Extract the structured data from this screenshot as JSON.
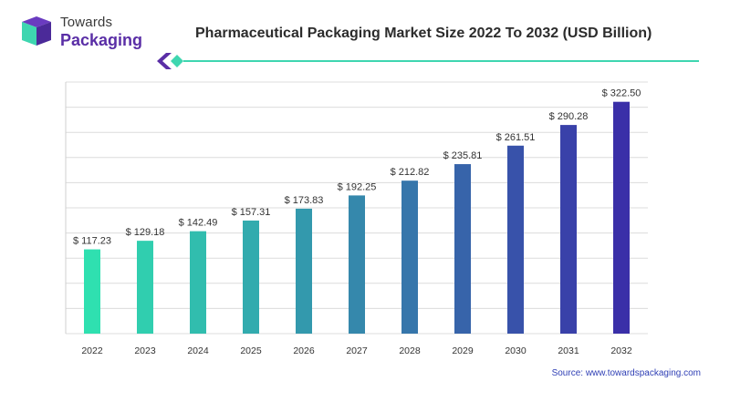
{
  "brand": {
    "line1": "Towards",
    "line2": "Packaging"
  },
  "colors": {
    "brand_purple": "#5a2ea6",
    "teal_accent": "#3ed6b0",
    "bar_start": "#2fe0b0",
    "bar_end": "#3a2fa8"
  },
  "source_text": "Source: www.towardspackaging.com",
  "chart_data": {
    "type": "bar",
    "title": "Pharmaceutical Packaging Market Size 2022 To 2032 (USD Billion)",
    "categories": [
      "2022",
      "2023",
      "2024",
      "2025",
      "2026",
      "2027",
      "2028",
      "2029",
      "2030",
      "2031",
      "2032"
    ],
    "values": [
      117.23,
      129.18,
      142.49,
      157.31,
      173.83,
      192.25,
      212.82,
      235.81,
      261.51,
      290.28,
      322.5
    ],
    "value_labels": [
      "$ 117.23",
      "$ 129.18",
      "$ 142.49",
      "$ 157.31",
      "$ 173.83",
      "$ 192.25",
      "$ 212.82",
      "$ 235.81",
      "$ 261.51",
      "$ 290.28",
      "$ 322.50"
    ],
    "xlabel": "",
    "ylabel": "",
    "ylim": [
      0,
      350
    ],
    "grid": true,
    "legend": "none"
  }
}
